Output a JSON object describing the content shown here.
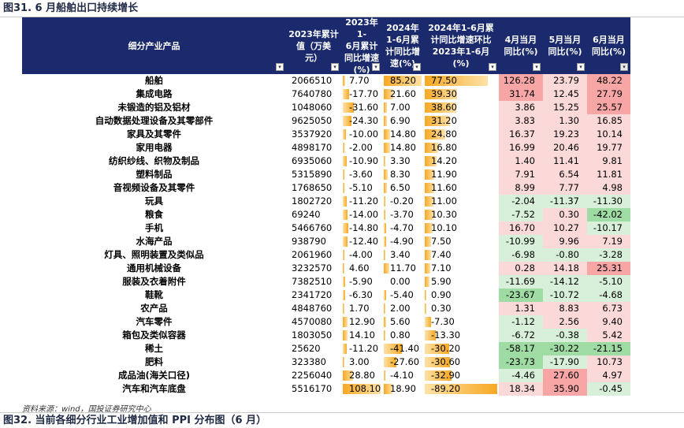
{
  "title_top": "图31. 6 月船舶出口持续增长",
  "title_bottom": "图32. 当前各细分行业工业增加值和 PPI 分布图（6 月）",
  "source": "资料来源：wind，国投证券研究中心",
  "headers": {
    "product": "细分产业产品",
    "val2023": "2023年累计\n值（万美\n元）",
    "yoy2023": "2023年1-\n6月累计\n同比增速\n(%)",
    "yoy2024": "2024年\n1-6月累\n计同比增\n速(%)",
    "diff": "2024年1-6月累\n计同比增速环比\n2023年1-6月(%)",
    "apr": "4月当月\n同比(%)",
    "may": "5月当月\n同比(%)",
    "jun": "6月当月\n同比(%)"
  },
  "colors": {
    "header_bg": "#1a2a6c",
    "bar": "#f7a823",
    "red_strong": "#f8a5a5",
    "red_light": "#fbd9d9",
    "green_strong": "#9fdca4",
    "green_light": "#d8f0da"
  },
  "rows": [
    {
      "name": "船舶",
      "val": "2066510",
      "y23": "7.70",
      "y24": "85.20",
      "diff": "77.50",
      "apr": "126.28",
      "may": "23.79",
      "jun": "48.22"
    },
    {
      "name": "集成电路",
      "val": "7640780",
      "y23": "-17.70",
      "y24": "21.60",
      "diff": "39.30",
      "apr": "31.74",
      "may": "12.45",
      "jun": "27.79"
    },
    {
      "name": "未锻造的铝及铝材",
      "val": "1048060",
      "y23": "-31.60",
      "y24": "7.00",
      "diff": "38.60",
      "apr": "3.86",
      "may": "15.25",
      "jun": "25.57"
    },
    {
      "name": "自动数据处理设备及其零部件",
      "val": "9625050",
      "y23": "-24.30",
      "y24": "6.90",
      "diff": "31.20",
      "apr": "3.83",
      "may": "1.30",
      "jun": "16.85"
    },
    {
      "name": "家具及其零件",
      "val": "3537920",
      "y23": "-10.00",
      "y24": "14.80",
      "diff": "24.80",
      "apr": "16.37",
      "may": "19.23",
      "jun": "10.14"
    },
    {
      "name": "家用电器",
      "val": "4898170",
      "y23": "-2.00",
      "y24": "14.80",
      "diff": "16.80",
      "apr": "16.99",
      "may": "20.46",
      "jun": "19.77"
    },
    {
      "name": "纺织纱线、织物及制品",
      "val": "6935060",
      "y23": "-10.90",
      "y24": "3.30",
      "diff": "14.20",
      "apr": "1.40",
      "may": "11.41",
      "jun": "9.81"
    },
    {
      "name": "塑料制品",
      "val": "5315890",
      "y23": "-3.60",
      "y24": "8.30",
      "diff": "11.90",
      "apr": "7.91",
      "may": "6.54",
      "jun": "11.81"
    },
    {
      "name": "音视频设备及其零件",
      "val": "1768650",
      "y23": "-5.10",
      "y24": "6.50",
      "diff": "11.60",
      "apr": "8.99",
      "may": "7.77",
      "jun": "4.98"
    },
    {
      "name": "玩具",
      "val": "1802720",
      "y23": "-11.20",
      "y24": "-0.20",
      "diff": "11.00",
      "apr": "-2.04",
      "may": "-11.37",
      "jun": "-11.30"
    },
    {
      "name": "粮食",
      "val": "69240",
      "y23": "-14.00",
      "y24": "-3.70",
      "diff": "10.30",
      "apr": "-7.52",
      "may": "0.30",
      "jun": "-42.02"
    },
    {
      "name": "手机",
      "val": "5466760",
      "y23": "-14.80",
      "y24": "-4.70",
      "diff": "10.10",
      "apr": "16.70",
      "may": "10.27",
      "jun": "-10.17"
    },
    {
      "name": "水海产品",
      "val": "938790",
      "y23": "-12.40",
      "y24": "-4.90",
      "diff": "7.50",
      "apr": "-10.99",
      "may": "9.96",
      "jun": "7.19"
    },
    {
      "name": "灯具、照明装置及类似品",
      "val": "2061960",
      "y23": "-4.00",
      "y24": "3.40",
      "diff": "7.40",
      "apr": "-6.98",
      "may": "-0.80",
      "jun": "-3.28"
    },
    {
      "name": "通用机械设备",
      "val": "3232570",
      "y23": "4.60",
      "y24": "11.70",
      "diff": "7.10",
      "apr": "0.28",
      "may": "14.18",
      "jun": "25.31"
    },
    {
      "name": "服装及衣着附件",
      "val": "7382510",
      "y23": "-5.90",
      "y24": "0.00",
      "diff": "5.90",
      "apr": "-11.69",
      "may": "-14.12",
      "jun": "-5.10"
    },
    {
      "name": "鞋靴",
      "val": "2341720",
      "y23": "-6.30",
      "y24": "-5.40",
      "diff": "0.90",
      "apr": "-23.67",
      "may": "-10.72",
      "jun": "-4.68"
    },
    {
      "name": "农产品",
      "val": "4848760",
      "y23": "1.70",
      "y24": "2.00",
      "diff": "0.30",
      "apr": "1.31",
      "may": "8.83",
      "jun": "6.73"
    },
    {
      "name": "汽车零件",
      "val": "4570080",
      "y23": "12.90",
      "y24": "5.60",
      "diff": "-7.30",
      "apr": "-1.12",
      "may": "2.56",
      "jun": "9.40"
    },
    {
      "name": "箱包及类似容器",
      "val": "1803050",
      "y23": "14.10",
      "y24": "0.80",
      "diff": "-13.30",
      "apr": "-6.72",
      "may": "-0.38",
      "jun": "5.42"
    },
    {
      "name": "稀土",
      "val": "25620",
      "y23": "-11.20",
      "y24": "-41.40",
      "diff": "-30.20",
      "apr": "-58.17",
      "may": "-30.22",
      "jun": "-21.15"
    },
    {
      "name": "肥料",
      "val": "323380",
      "y23": "3.00",
      "y24": "-27.60",
      "diff": "-30.60",
      "apr": "-23.73",
      "may": "-17.90",
      "jun": "10.73"
    },
    {
      "name": "成品油(海关口径)",
      "val": "2256040",
      "y23": "28.80",
      "y24": "-4.10",
      "diff": "-32.90",
      "apr": "-4.46",
      "may": "27.60",
      "jun": "4.97"
    },
    {
      "name": "汽车和汽车底盘",
      "val": "5516170",
      "y23": "108.10",
      "y24": "18.90",
      "diff": "-89.20",
      "apr": "18.34",
      "may": "35.90",
      "jun": "-0.45"
    }
  ]
}
